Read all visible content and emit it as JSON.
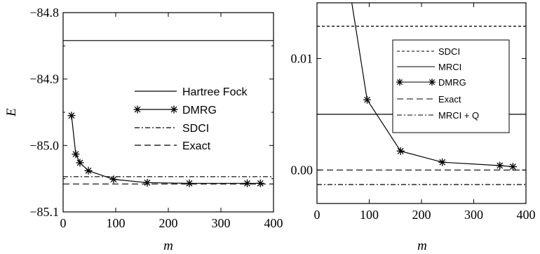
{
  "chart_data": [
    {
      "type": "line",
      "xlabel": "m",
      "ylabel": "E",
      "xlim": [
        0,
        400
      ],
      "ylim": [
        -85.1,
        -84.8
      ],
      "xticks": [
        "0",
        "100",
        "200",
        "300",
        "400"
      ],
      "yticks": [
        "-84.8",
        "-84.9",
        "-85.0",
        "-85.1"
      ],
      "grid": false,
      "legend_position": "center-right",
      "series": [
        {
          "name": "Hartree Fock",
          "style": "solid",
          "color": "#000000",
          "x": [
            0,
            400
          ],
          "y": [
            -84.842,
            -84.842
          ]
        },
        {
          "name": "DMRG",
          "style": "solid-asterisk",
          "color": "#000000",
          "x": [
            16,
            24,
            32,
            48,
            96,
            160,
            240,
            350,
            375
          ],
          "y": [
            -84.955,
            -85.013,
            -85.026,
            -85.038,
            -85.051,
            -85.056,
            -85.057,
            -85.057,
            -85.057
          ]
        },
        {
          "name": "SDCI",
          "style": "dashdot",
          "color": "#000000",
          "x": [
            0,
            400
          ],
          "y": [
            -85.047,
            -85.047
          ]
        },
        {
          "name": "Exact",
          "style": "dashed",
          "color": "#000000",
          "x": [
            0,
            400
          ],
          "y": [
            -85.058,
            -85.058
          ]
        }
      ]
    },
    {
      "type": "line",
      "xlabel": "m",
      "ylabel": "",
      "xlim": [
        0,
        400
      ],
      "ylim": [
        -0.003,
        0.015
      ],
      "xticks": [
        "0",
        "100",
        "200",
        "300",
        "400"
      ],
      "yticks": [
        "0.01",
        "0.00"
      ],
      "grid": false,
      "legend_position": "top-right",
      "series": [
        {
          "name": "SDCI",
          "style": "dotted",
          "color": "#000000",
          "x": [
            0,
            400
          ],
          "y": [
            0.0129,
            0.0129
          ]
        },
        {
          "name": "MRCI",
          "style": "solid",
          "color": "#000000",
          "x": [
            0,
            400
          ],
          "y": [
            0.005,
            0.005
          ]
        },
        {
          "name": "DMRG",
          "style": "solid-asterisk",
          "color": "#000000",
          "x": [
            65,
            96,
            160,
            240,
            350,
            375
          ],
          "y": [
            0.0155,
            0.0063,
            0.0017,
            0.0007,
            0.0004,
            0.0003
          ]
        },
        {
          "name": "Exact",
          "style": "dashed",
          "color": "#000000",
          "x": [
            0,
            400
          ],
          "y": [
            0.0,
            0.0
          ]
        },
        {
          "name": "MRCI + Q",
          "style": "dashdot",
          "color": "#000000",
          "x": [
            0,
            400
          ],
          "y": [
            -0.0013,
            -0.0013
          ]
        }
      ]
    }
  ]
}
